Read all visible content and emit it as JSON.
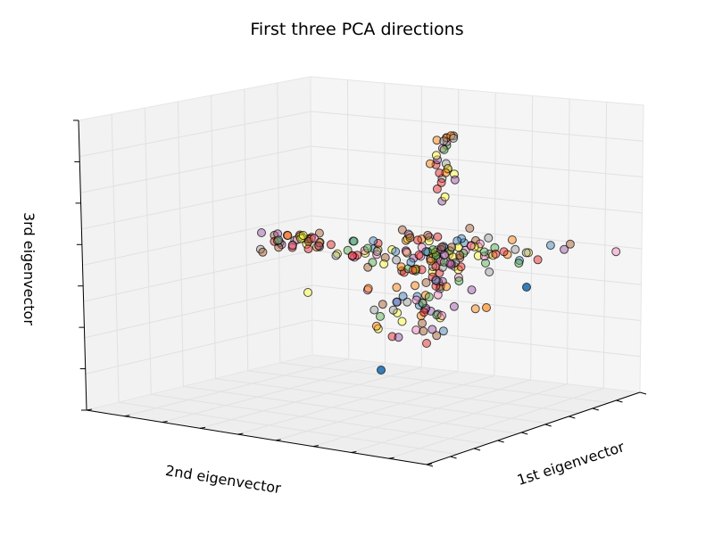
{
  "chart_data": {
    "type": "scatter",
    "title": "First three PCA directions",
    "xlabel": "2nd eigenvector",
    "ylabel": "1st eigenvector",
    "zlabel": "3rd eigenvector",
    "projection": "3d",
    "grid": true,
    "tick_labels": "none",
    "colormap": "Set1",
    "point_colors": [
      "#e41a1c",
      "#377eb8",
      "#4daf4a",
      "#984ea3",
      "#ff7f00",
      "#ffff33",
      "#a65628",
      "#f781bf",
      "#999999"
    ],
    "point_count": 250
  }
}
